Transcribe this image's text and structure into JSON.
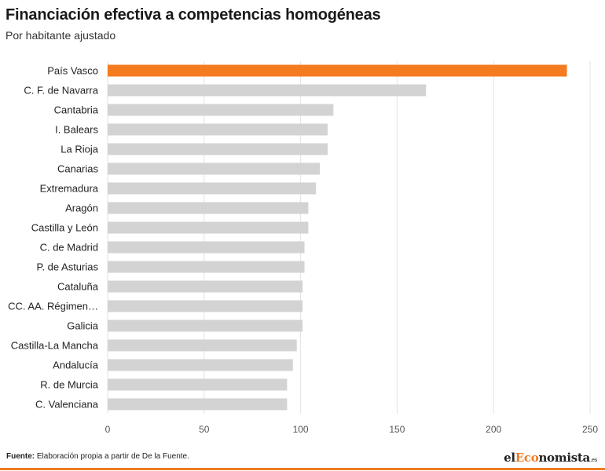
{
  "header": {
    "title": "Financiación efectiva a competencias homogéneas",
    "subtitle": "Por habitante ajustado"
  },
  "chart_data": {
    "type": "bar",
    "orientation": "horizontal",
    "title": "Financiación efectiva a competencias homogéneas",
    "subtitle": "Por habitante ajustado",
    "xlabel": "",
    "ylabel": "",
    "xlim": [
      0,
      250
    ],
    "ticks": [
      0,
      50,
      100,
      150,
      200,
      250
    ],
    "grid": true,
    "categories": [
      "País Vasco",
      "C. F. de Navarra",
      "Cantabria",
      "I. Balears",
      "La Rioja",
      "Canarias",
      "Extremadura",
      "Aragón",
      "Castilla y León",
      "C. de Madrid",
      "P. de Asturias",
      "Cataluña",
      "CC. AA. Régimen…",
      "Galicia",
      "Castilla-La Mancha",
      "Andalucía",
      "R. de Murcia",
      "C. Valenciana"
    ],
    "values": [
      238,
      165,
      117,
      114,
      114,
      110,
      108,
      104,
      104,
      102,
      102,
      101,
      101,
      101,
      98,
      96,
      93,
      93
    ],
    "highlight_index": 0,
    "colors": {
      "highlight": "#f47b20",
      "default": "#d3d3d3",
      "grid": "#e3e3e3"
    }
  },
  "footer": {
    "source_label": "Fuente:",
    "source_text": " Elaboración propia a partir de De la Fuente.",
    "logo_part1": "el",
    "logo_part2": "Eco",
    "logo_part3": "nomista",
    "logo_suffix": ".es"
  }
}
